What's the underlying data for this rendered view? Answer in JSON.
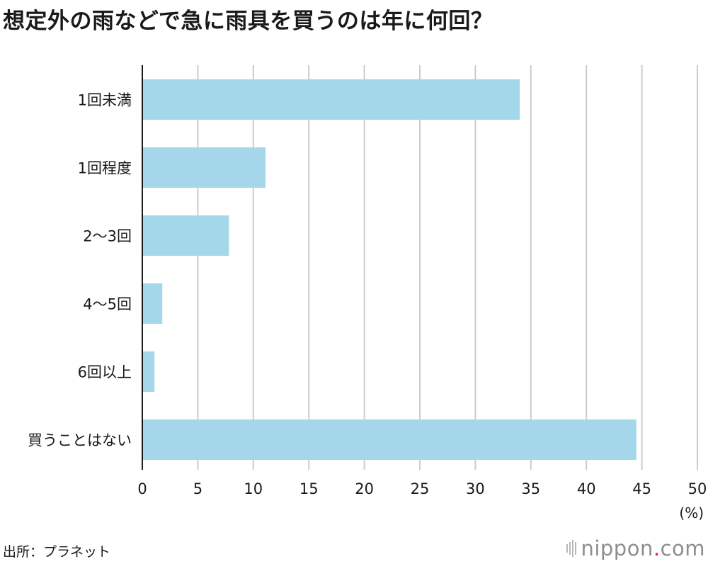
{
  "title": "想定外の雨などで急に雨具を買うのは年に何回？",
  "source": "出所：プラネット",
  "logo": {
    "name": "nippon",
    "dot": ".",
    "suffix": "com"
  },
  "colors": {
    "bar": "#a3d7e9",
    "grid": "#cccccc",
    "axis": "#1a1a1a"
  },
  "chart_data": {
    "type": "bar",
    "orientation": "horizontal",
    "categories": [
      "1回未満",
      "1回程度",
      "2〜3回",
      "4〜5回",
      "6回以上",
      "買うことはない"
    ],
    "values": [
      34.0,
      11.1,
      7.8,
      1.8,
      1.1,
      44.5
    ],
    "xlabel": "(%)",
    "xlim": [
      0,
      50
    ],
    "xticks": [
      0,
      5,
      10,
      15,
      20,
      25,
      30,
      35,
      40,
      45,
      50
    ],
    "grid": true,
    "legend": "none"
  }
}
